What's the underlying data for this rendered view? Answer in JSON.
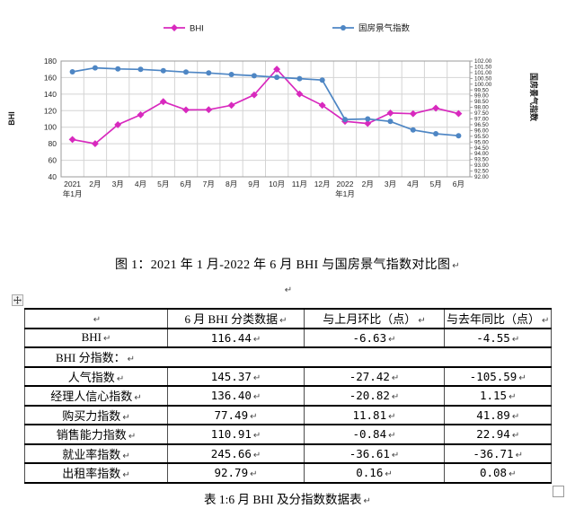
{
  "chart_data": {
    "type": "line",
    "title": "",
    "legend_position": "top",
    "grid": true,
    "categories": [
      "2021\n年1月",
      "2月",
      "3月",
      "4月",
      "5月",
      "6月",
      "7月",
      "8月",
      "9月",
      "10月",
      "11月",
      "12月",
      "2022\n年1月",
      "2月",
      "3月",
      "4月",
      "5月",
      "6月"
    ],
    "left_axis": {
      "label": "BHI",
      "min": 40,
      "max": 180,
      "step": 20
    },
    "right_axis": {
      "label": "国房景气指数",
      "min": 92,
      "max": 102,
      "step": 0.5
    },
    "series": [
      {
        "name": "BHI",
        "axis": "left",
        "marker": "diamond",
        "color": "#d829be",
        "values": [
          85.1,
          80.1,
          103.1,
          115.0,
          130.8,
          121.0,
          121.2,
          126.5,
          139.1,
          170.1,
          140.2,
          126.5,
          107.1,
          104.5,
          117.2,
          116.3,
          123.07,
          116.44
        ]
      },
      {
        "name": "国房景气指数",
        "axis": "right",
        "marker": "circle",
        "color": "#4e86c4",
        "values": [
          101.07,
          101.41,
          101.32,
          101.28,
          101.17,
          101.05,
          100.97,
          100.84,
          100.73,
          100.6,
          100.48,
          100.36,
          96.95,
          97.0,
          96.78,
          96.05,
          95.72,
          95.55
        ]
      }
    ]
  },
  "figure_caption": "图 1：2021 年 1 月-2022 年 6 月 BHI 与国房景气指数对比图",
  "marks": {
    "return": "↵"
  },
  "table": {
    "headers": [
      "",
      "6 月 BHI 分类数据",
      "与上月环比（点）",
      "与去年同比（点）"
    ],
    "rows": [
      {
        "label": "BHI",
        "values": [
          "116.44",
          "-6.63",
          "-4.55"
        ]
      },
      {
        "label": "BHI 分指数：",
        "values": []
      },
      {
        "label": "人气指数",
        "values": [
          "145.37",
          "-27.42",
          "-105.59"
        ]
      },
      {
        "label": "经理人信心指数",
        "values": [
          "136.40",
          "-20.82",
          "1.15"
        ]
      },
      {
        "label": "购买力指数",
        "values": [
          "77.49",
          "11.81",
          "41.89"
        ]
      },
      {
        "label": "销售能力指数",
        "values": [
          "110.91",
          "-0.84",
          "22.94"
        ]
      },
      {
        "label": "就业率指数",
        "values": [
          "245.66",
          "-36.61",
          "-36.71"
        ]
      },
      {
        "label": "出租率指数",
        "values": [
          "92.79",
          "0.16",
          "0.08"
        ]
      }
    ],
    "caption": "表 1:6 月 BHI 及分指数数据表"
  }
}
